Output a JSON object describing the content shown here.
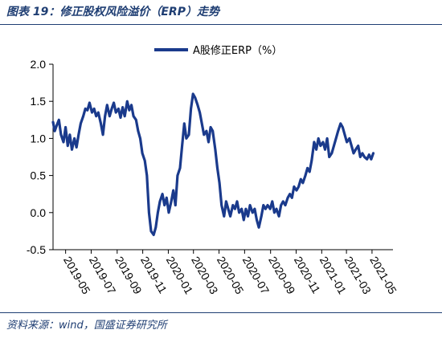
{
  "figure": {
    "title": "图表 19：修正股权风险溢价（ERP）走势",
    "source": "资料来源：wind，国盛证券研究所"
  },
  "colors": {
    "line": "#1a3a8c",
    "frame": "#1f3e73"
  },
  "chart_data": {
    "type": "line",
    "legend": {
      "position": "top-center"
    },
    "grid": false,
    "ylim": [
      -0.5,
      2.0
    ],
    "yticks": [
      "2.0",
      "1.5",
      "1.0",
      "0.5",
      "0.0",
      "-0.5"
    ],
    "ytick_values": [
      2.0,
      1.5,
      1.0,
      0.5,
      0.0,
      -0.5
    ],
    "xlim": [
      "2019-04-01",
      "2021-06-20"
    ],
    "xticks": [
      "2019-05",
      "2019-07",
      "2019-09",
      "2019-11",
      "2020-01",
      "2020-03",
      "2020-05",
      "2020-07",
      "2020-09",
      "2020-11",
      "2021-01",
      "2021-03",
      "2021-05"
    ],
    "xtick_dates": [
      "2019-05-01",
      "2019-07-01",
      "2019-09-01",
      "2019-11-01",
      "2020-01-01",
      "2020-03-01",
      "2020-05-01",
      "2020-07-01",
      "2020-09-01",
      "2020-11-01",
      "2021-01-01",
      "2021-03-01",
      "2021-05-01"
    ],
    "series": [
      {
        "name": "A股修正ERP（%）",
        "points": [
          [
            "2019-04-01",
            1.22
          ],
          [
            "2019-04-05",
            1.1
          ],
          [
            "2019-04-10",
            1.18
          ],
          [
            "2019-04-15",
            1.25
          ],
          [
            "2019-04-20",
            1.05
          ],
          [
            "2019-04-26",
            0.95
          ],
          [
            "2019-05-01",
            1.15
          ],
          [
            "2019-05-06",
            0.9
          ],
          [
            "2019-05-11",
            1.05
          ],
          [
            "2019-05-16",
            0.85
          ],
          [
            "2019-05-22",
            1.0
          ],
          [
            "2019-05-27",
            0.88
          ],
          [
            "2019-06-01",
            1.05
          ],
          [
            "2019-06-06",
            1.2
          ],
          [
            "2019-06-12",
            1.3
          ],
          [
            "2019-06-17",
            1.4
          ],
          [
            "2019-06-22",
            1.38
          ],
          [
            "2019-06-27",
            1.48
          ],
          [
            "2019-07-03",
            1.35
          ],
          [
            "2019-07-08",
            1.4
          ],
          [
            "2019-07-13",
            1.3
          ],
          [
            "2019-07-18",
            1.35
          ],
          [
            "2019-07-24",
            1.2
          ],
          [
            "2019-07-29",
            1.05
          ],
          [
            "2019-08-03",
            1.3
          ],
          [
            "2019-08-08",
            1.45
          ],
          [
            "2019-08-14",
            1.3
          ],
          [
            "2019-08-19",
            1.4
          ],
          [
            "2019-08-24",
            1.48
          ],
          [
            "2019-08-29",
            1.35
          ],
          [
            "2019-09-04",
            1.4
          ],
          [
            "2019-09-09",
            1.28
          ],
          [
            "2019-09-14",
            1.42
          ],
          [
            "2019-09-19",
            1.3
          ],
          [
            "2019-09-25",
            1.5
          ],
          [
            "2019-09-30",
            1.38
          ],
          [
            "2019-10-05",
            1.45
          ],
          [
            "2019-10-10",
            1.3
          ],
          [
            "2019-10-16",
            1.25
          ],
          [
            "2019-10-21",
            1.1
          ],
          [
            "2019-10-26",
            1.0
          ],
          [
            "2019-10-31",
            0.8
          ],
          [
            "2019-11-06",
            0.7
          ],
          [
            "2019-11-11",
            0.5
          ],
          [
            "2019-11-16",
            0.0
          ],
          [
            "2019-11-21",
            -0.25
          ],
          [
            "2019-11-27",
            -0.3
          ],
          [
            "2019-12-02",
            -0.2
          ],
          [
            "2019-12-07",
            0.0
          ],
          [
            "2019-12-12",
            0.15
          ],
          [
            "2019-12-18",
            0.25
          ],
          [
            "2019-12-23",
            0.1
          ],
          [
            "2019-12-28",
            0.2
          ],
          [
            "2020-01-02",
            0.0
          ],
          [
            "2020-01-08",
            0.15
          ],
          [
            "2020-01-13",
            0.3
          ],
          [
            "2020-01-18",
            0.1
          ],
          [
            "2020-01-23",
            0.5
          ],
          [
            "2020-01-29",
            0.6
          ],
          [
            "2020-02-03",
            0.9
          ],
          [
            "2020-02-08",
            1.2
          ],
          [
            "2020-02-13",
            1.0
          ],
          [
            "2020-02-19",
            1.05
          ],
          [
            "2020-02-24",
            1.4
          ],
          [
            "2020-02-29",
            1.6
          ],
          [
            "2020-03-05",
            1.55
          ],
          [
            "2020-03-11",
            1.45
          ],
          [
            "2020-03-16",
            1.35
          ],
          [
            "2020-03-21",
            1.2
          ],
          [
            "2020-03-26",
            1.05
          ],
          [
            "2020-04-01",
            1.1
          ],
          [
            "2020-04-06",
            0.95
          ],
          [
            "2020-04-11",
            1.15
          ],
          [
            "2020-04-16",
            1.1
          ],
          [
            "2020-04-22",
            0.85
          ],
          [
            "2020-04-27",
            0.6
          ],
          [
            "2020-05-02",
            0.4
          ],
          [
            "2020-05-07",
            0.1
          ],
          [
            "2020-05-13",
            -0.05
          ],
          [
            "2020-05-18",
            0.15
          ],
          [
            "2020-05-23",
            0.05
          ],
          [
            "2020-05-28",
            -0.05
          ],
          [
            "2020-06-03",
            0.1
          ],
          [
            "2020-06-08",
            0.05
          ],
          [
            "2020-06-13",
            0.15
          ],
          [
            "2020-06-18",
            0.0
          ],
          [
            "2020-06-24",
            0.05
          ],
          [
            "2020-06-29",
            -0.1
          ],
          [
            "2020-07-04",
            0.05
          ],
          [
            "2020-07-09",
            -0.05
          ],
          [
            "2020-07-14",
            0.1
          ],
          [
            "2020-07-20",
            0.0
          ],
          [
            "2020-07-25",
            0.05
          ],
          [
            "2020-07-30",
            -0.1
          ],
          [
            "2020-08-04",
            -0.2
          ],
          [
            "2020-08-10",
            -0.05
          ],
          [
            "2020-08-15",
            0.1
          ],
          [
            "2020-08-20",
            0.05
          ],
          [
            "2020-08-25",
            0.1
          ],
          [
            "2020-08-31",
            0.05
          ],
          [
            "2020-09-05",
            0.15
          ],
          [
            "2020-09-10",
            0.0
          ],
          [
            "2020-09-15",
            0.05
          ],
          [
            "2020-09-21",
            -0.05
          ],
          [
            "2020-09-26",
            0.1
          ],
          [
            "2020-10-01",
            0.15
          ],
          [
            "2020-10-06",
            0.1
          ],
          [
            "2020-10-12",
            0.2
          ],
          [
            "2020-10-17",
            0.25
          ],
          [
            "2020-10-22",
            0.2
          ],
          [
            "2020-10-27",
            0.35
          ],
          [
            "2020-11-02",
            0.3
          ],
          [
            "2020-11-07",
            0.35
          ],
          [
            "2020-11-12",
            0.45
          ],
          [
            "2020-11-17",
            0.4
          ],
          [
            "2020-11-23",
            0.5
          ],
          [
            "2020-11-28",
            0.6
          ],
          [
            "2020-12-03",
            0.55
          ],
          [
            "2020-12-08",
            0.7
          ],
          [
            "2020-12-14",
            0.95
          ],
          [
            "2020-12-19",
            0.85
          ],
          [
            "2020-12-24",
            1.0
          ],
          [
            "2020-12-29",
            0.9
          ],
          [
            "2021-01-04",
            0.95
          ],
          [
            "2021-01-09",
            0.85
          ],
          [
            "2021-01-14",
            1.0
          ],
          [
            "2021-01-19",
            0.75
          ],
          [
            "2021-01-25",
            0.8
          ],
          [
            "2021-01-30",
            0.9
          ],
          [
            "2021-02-04",
            1.0
          ],
          [
            "2021-02-09",
            1.1
          ],
          [
            "2021-02-15",
            1.2
          ],
          [
            "2021-02-20",
            1.15
          ],
          [
            "2021-02-25",
            1.05
          ],
          [
            "2021-03-02",
            0.95
          ],
          [
            "2021-03-08",
            1.0
          ],
          [
            "2021-03-13",
            0.9
          ],
          [
            "2021-03-18",
            0.8
          ],
          [
            "2021-03-23",
            0.85
          ],
          [
            "2021-03-29",
            0.9
          ],
          [
            "2021-04-03",
            0.75
          ],
          [
            "2021-04-08",
            0.8
          ],
          [
            "2021-04-13",
            0.75
          ],
          [
            "2021-04-19",
            0.72
          ],
          [
            "2021-04-24",
            0.78
          ],
          [
            "2021-04-29",
            0.72
          ],
          [
            "2021-05-04",
            0.8
          ]
        ]
      }
    ]
  }
}
